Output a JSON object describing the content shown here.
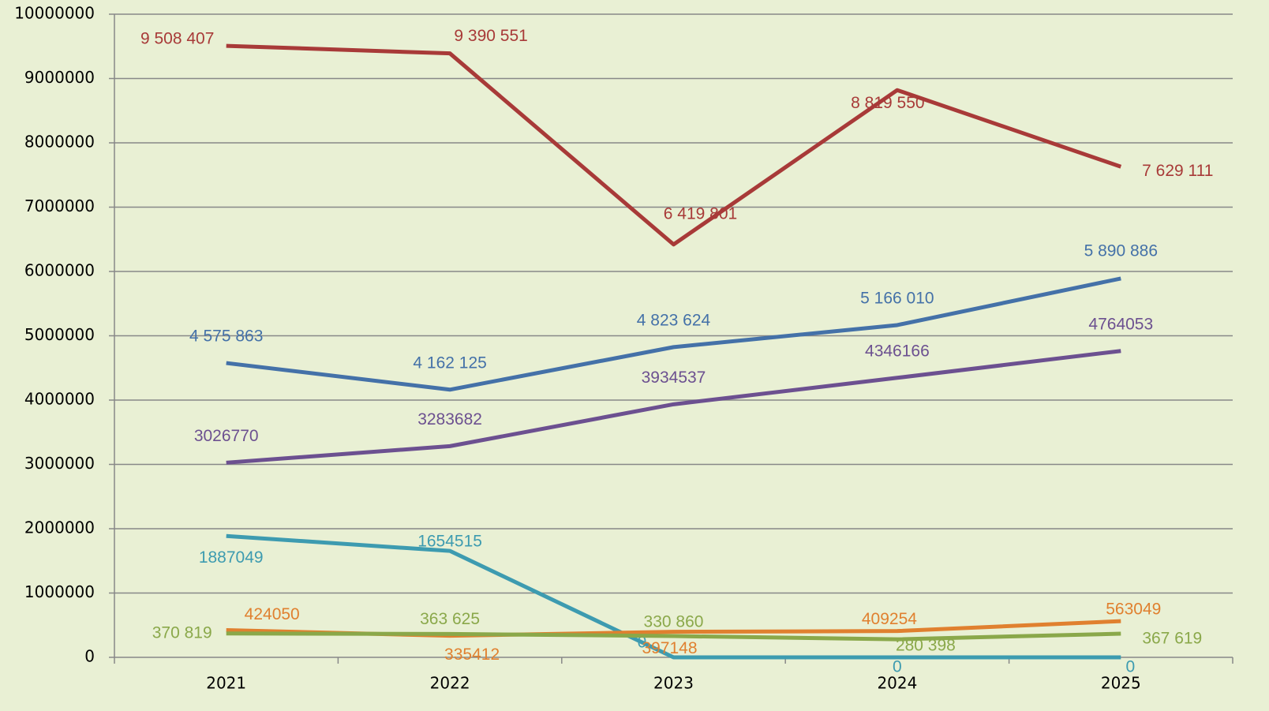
{
  "chart_data": {
    "type": "line",
    "categories": [
      "2021",
      "2022",
      "2023",
      "2024",
      "2025"
    ],
    "series": [
      {
        "color": "#a83a38",
        "values": [
          9508407,
          9390551,
          6419801,
          8819550,
          7629111
        ],
        "value_labels": [
          "9 508 407",
          "9 390 551",
          "6 419 801",
          "8 819 550",
          "7 629 111"
        ]
      },
      {
        "color": "#4471a8",
        "values": [
          4575863,
          4162125,
          4823624,
          5166010,
          5890886
        ],
        "value_labels": [
          "4 575 863",
          "4 162 125",
          "4 823 624",
          "5 166 010",
          "5 890 886"
        ]
      },
      {
        "color": "#6c5090",
        "values": [
          3026770,
          3283682,
          3934537,
          4346166,
          4764053
        ]
      },
      {
        "color": "#3d9bb0",
        "values": [
          1887049,
          1654515,
          0,
          0,
          0
        ]
      },
      {
        "color": "#e0802f",
        "values": [
          424050,
          335412,
          397148,
          409254,
          563049
        ]
      },
      {
        "color": "#8aa84a",
        "values": [
          370819,
          363625,
          330860,
          280398,
          367619
        ],
        "value_labels": [
          "370 819",
          "363 625",
          "330 860",
          "280 398",
          "367 619"
        ]
      }
    ],
    "ylim": [
      0,
      10000000
    ],
    "yticks": [
      0,
      1000000,
      2000000,
      3000000,
      4000000,
      5000000,
      6000000,
      7000000,
      8000000,
      9000000,
      10000000
    ],
    "grid": true
  }
}
